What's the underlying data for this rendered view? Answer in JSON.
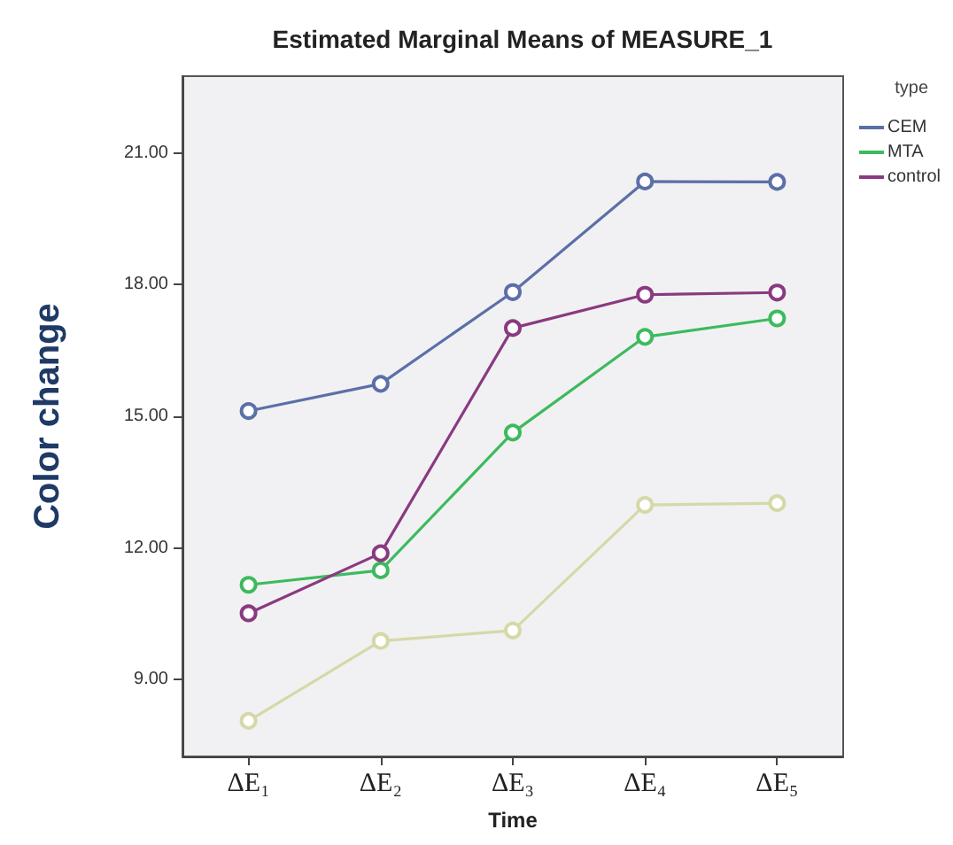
{
  "chart_data": {
    "type": "line",
    "title": "Estimated Marginal Means of MEASURE_1",
    "xlabel": "Time",
    "ylabel": "Color change",
    "legend_title": "type",
    "categories": [
      "ΔE₁",
      "ΔE₂",
      "ΔE₃",
      "ΔE₄",
      "ΔE₅"
    ],
    "series": [
      {
        "name": "CEM",
        "color": "#5b6fa8",
        "values": [
          15.12,
          15.74,
          17.83,
          20.35,
          20.34
        ]
      },
      {
        "name": "MTA",
        "color": "#3dba5e",
        "values": [
          11.16,
          11.49,
          14.63,
          16.81,
          17.23
        ]
      },
      {
        "color": "#d6d8a8",
        "values": [
          8.06,
          9.88,
          10.12,
          12.98,
          13.02
        ]
      },
      {
        "name": "control",
        "color": "#8a3a80",
        "values": [
          10.51,
          11.88,
          17.01,
          17.77,
          17.82
        ]
      }
    ],
    "ylim": [
      7.25,
      22.75
    ],
    "yticks": [
      {
        "value": 9,
        "label": "9.00"
      },
      {
        "value": 12,
        "label": "12.00"
      },
      {
        "value": 15,
        "label": "15.00"
      },
      {
        "value": 18,
        "label": "18.00"
      },
      {
        "value": 21,
        "label": "21.00"
      }
    ],
    "grid": false,
    "legend": "top right",
    "marker": "circle",
    "line_style": "solid"
  }
}
